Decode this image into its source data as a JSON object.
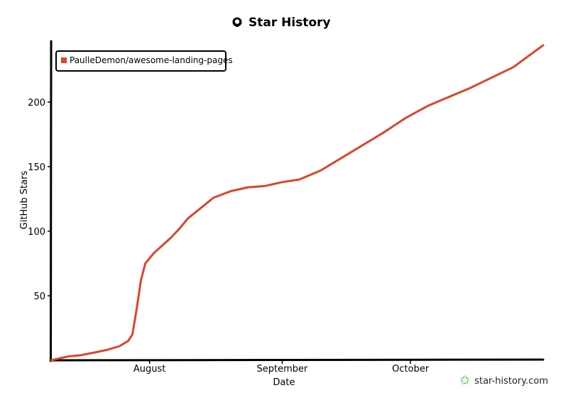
{
  "chart_data": {
    "type": "line",
    "title": "Star History",
    "xlabel": "Date",
    "ylabel": "GitHub Stars",
    "ylim": [
      0,
      245
    ],
    "yticks": [
      50,
      100,
      150,
      200
    ],
    "xticks": [
      {
        "label": "August",
        "date": "2023-08-01"
      },
      {
        "label": "September",
        "date": "2023-09-01"
      },
      {
        "label": "October",
        "date": "2023-10-01"
      }
    ],
    "xlim": [
      "2023-07-09",
      "2023-11-01"
    ],
    "legend_position": "top-left",
    "grid": false,
    "series": [
      {
        "name": "PaulleDemon/awesome-landing-pages",
        "color": "#dd4528",
        "points": [
          {
            "date": "2023-07-09",
            "stars": 0
          },
          {
            "date": "2023-07-13",
            "stars": 3
          },
          {
            "date": "2023-07-16",
            "stars": 4
          },
          {
            "date": "2023-07-19",
            "stars": 6
          },
          {
            "date": "2023-07-22",
            "stars": 8
          },
          {
            "date": "2023-07-25",
            "stars": 11
          },
          {
            "date": "2023-07-27",
            "stars": 15
          },
          {
            "date": "2023-07-28",
            "stars": 20
          },
          {
            "date": "2023-07-29",
            "stars": 40
          },
          {
            "date": "2023-07-30",
            "stars": 62
          },
          {
            "date": "2023-07-31",
            "stars": 75
          },
          {
            "date": "2023-08-02",
            "stars": 83
          },
          {
            "date": "2023-08-04",
            "stars": 89
          },
          {
            "date": "2023-08-06",
            "stars": 95
          },
          {
            "date": "2023-08-08",
            "stars": 102
          },
          {
            "date": "2023-08-10",
            "stars": 110
          },
          {
            "date": "2023-08-13",
            "stars": 118
          },
          {
            "date": "2023-08-16",
            "stars": 126
          },
          {
            "date": "2023-08-20",
            "stars": 131
          },
          {
            "date": "2023-08-24",
            "stars": 134
          },
          {
            "date": "2023-08-28",
            "stars": 135
          },
          {
            "date": "2023-09-01",
            "stars": 138
          },
          {
            "date": "2023-09-05",
            "stars": 140
          },
          {
            "date": "2023-09-10",
            "stars": 147
          },
          {
            "date": "2023-09-15",
            "stars": 157
          },
          {
            "date": "2023-09-20",
            "stars": 167
          },
          {
            "date": "2023-09-25",
            "stars": 177
          },
          {
            "date": "2023-09-30",
            "stars": 188
          },
          {
            "date": "2023-10-05",
            "stars": 197
          },
          {
            "date": "2023-10-10",
            "stars": 204
          },
          {
            "date": "2023-10-15",
            "stars": 211
          },
          {
            "date": "2023-10-20",
            "stars": 219
          },
          {
            "date": "2023-10-25",
            "stars": 227
          },
          {
            "date": "2023-11-01",
            "stars": 244
          }
        ]
      }
    ]
  },
  "branding": {
    "text": "star-history.com",
    "icon": "star-icon",
    "title_icon": "github-icon"
  }
}
